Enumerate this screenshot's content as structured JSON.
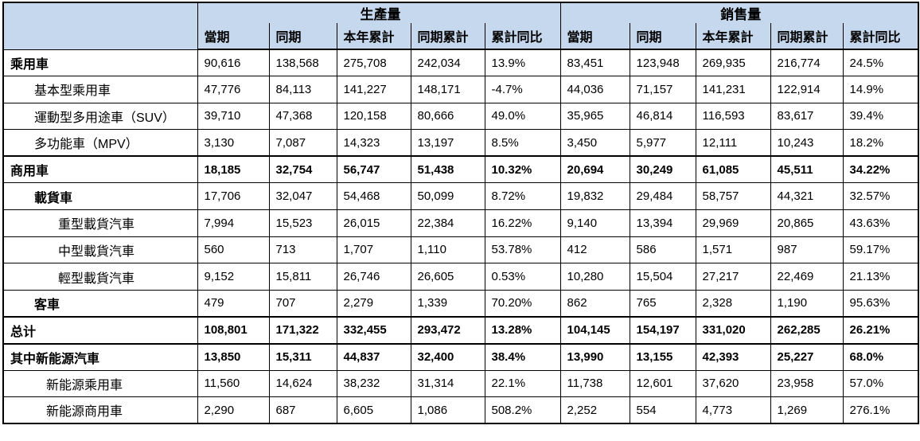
{
  "colors": {
    "header_bg": "#C5D8ED",
    "border": "#000000",
    "text": "#000000"
  },
  "table": {
    "groups": [
      "生產量",
      "銷售量"
    ],
    "sub_headers": [
      "當期",
      "同期",
      "本年累計",
      "同期累計",
      "累計同比"
    ],
    "column_keys": [
      "current",
      "prior-year",
      "ytd",
      "prior-ytd",
      "yoy"
    ],
    "rows": [
      {
        "label": "乘用車",
        "indent": 0,
        "bold_label": true,
        "bold_values": false,
        "section": false,
        "production": [
          "90,616",
          "138,568",
          "275,708",
          "242,034",
          "13.9%"
        ],
        "sales": [
          "83,451",
          "123,948",
          "269,935",
          "216,774",
          "24.5%"
        ]
      },
      {
        "label": "基本型乘用車",
        "indent": 1,
        "bold_label": false,
        "bold_values": false,
        "section": false,
        "production": [
          "47,776",
          "84,113",
          "141,227",
          "148,171",
          "-4.7%"
        ],
        "sales": [
          "44,036",
          "71,157",
          "141,231",
          "122,914",
          "14.9%"
        ]
      },
      {
        "label": "運動型多用途車（SUV）",
        "indent": 1,
        "bold_label": false,
        "bold_values": false,
        "section": false,
        "production": [
          "39,710",
          "47,368",
          "120,158",
          "80,666",
          "49.0%"
        ],
        "sales": [
          "35,965",
          "46,814",
          "116,593",
          "83,617",
          "39.4%"
        ]
      },
      {
        "label": "多功能車（MPV）",
        "indent": 1,
        "bold_label": false,
        "bold_values": false,
        "section": false,
        "production": [
          "3,130",
          "7,087",
          "14,323",
          "13,197",
          "8.5%"
        ],
        "sales": [
          "3,450",
          "5,977",
          "12,111",
          "10,243",
          "18.2%"
        ]
      },
      {
        "label": "商用車",
        "indent": 0,
        "bold_label": true,
        "bold_values": true,
        "section": true,
        "production": [
          "18,185",
          "32,754",
          "56,747",
          "51,438",
          "10.32%"
        ],
        "sales": [
          "20,694",
          "30,249",
          "61,085",
          "45,511",
          "34.22%"
        ]
      },
      {
        "label": "載貨車",
        "indent": 1,
        "bold_label": true,
        "bold_values": false,
        "section": false,
        "production": [
          "17,706",
          "32,047",
          "54,468",
          "50,099",
          "8.72%"
        ],
        "sales": [
          "19,832",
          "29,484",
          "58,757",
          "44,321",
          "32.57%"
        ]
      },
      {
        "label": "重型載貨汽車",
        "indent": 2,
        "bold_label": false,
        "bold_values": false,
        "section": false,
        "production": [
          "7,994",
          "15,523",
          "26,015",
          "22,384",
          "16.22%"
        ],
        "sales": [
          "9,140",
          "13,394",
          "29,969",
          "20,865",
          "43.63%"
        ]
      },
      {
        "label": "中型載貨汽車",
        "indent": 2,
        "bold_label": false,
        "bold_values": false,
        "section": false,
        "production": [
          "560",
          "713",
          "1,707",
          "1,110",
          "53.78%"
        ],
        "sales": [
          "412",
          "586",
          "1,571",
          "987",
          "59.17%"
        ]
      },
      {
        "label": "輕型載貨汽車",
        "indent": 2,
        "bold_label": false,
        "bold_values": false,
        "section": false,
        "production": [
          "9,152",
          "15,811",
          "26,746",
          "26,605",
          "0.53%"
        ],
        "sales": [
          "10,280",
          "15,504",
          "27,217",
          "22,469",
          "21.13%"
        ]
      },
      {
        "label": "客車",
        "indent": 1,
        "bold_label": true,
        "bold_values": false,
        "section": false,
        "production": [
          "479",
          "707",
          "2,279",
          "1,339",
          "70.20%"
        ],
        "sales": [
          "862",
          "765",
          "2,328",
          "1,190",
          "95.63%"
        ]
      },
      {
        "label": "总计",
        "indent": 0,
        "bold_label": true,
        "bold_values": true,
        "section": true,
        "production": [
          "108,801",
          "171,322",
          "332,455",
          "293,472",
          "13.28%"
        ],
        "sales": [
          "104,145",
          "154,197",
          "331,020",
          "262,285",
          "26.21%"
        ]
      },
      {
        "label": "其中新能源汽車",
        "indent": 0,
        "bold_label": true,
        "bold_values": true,
        "section": true,
        "production": [
          "13,850",
          "15,311",
          "44,837",
          "32,400",
          "38.4%"
        ],
        "sales": [
          "13,990",
          "13,155",
          "42,393",
          "25,227",
          "68.0%"
        ]
      },
      {
        "label": "新能源乘用車",
        "indent": 1.5,
        "bold_label": false,
        "bold_values": false,
        "section": false,
        "production": [
          "11,560",
          "14,624",
          "38,232",
          "31,314",
          "22.1%"
        ],
        "sales": [
          "11,738",
          "12,601",
          "37,620",
          "23,958",
          "57.0%"
        ]
      },
      {
        "label": "新能源商用車",
        "indent": 1.5,
        "bold_label": false,
        "bold_values": false,
        "section": false,
        "production": [
          "2,290",
          "687",
          "6,605",
          "1,086",
          "508.2%"
        ],
        "sales": [
          "2,252",
          "554",
          "4,773",
          "1,269",
          "276.1%"
        ]
      }
    ]
  }
}
